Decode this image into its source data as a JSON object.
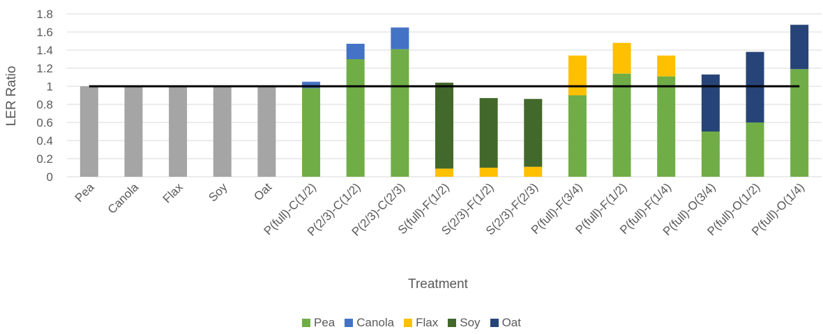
{
  "chart_data": {
    "type": "bar",
    "stacked": true,
    "title": "",
    "xlabel": "Treatment",
    "ylabel": "LER Ratio",
    "ylim": [
      0,
      1.8
    ],
    "yticks": [
      "0",
      "0.2",
      "0.4",
      "0.6",
      "0.8",
      "1",
      "1.2",
      "1.4",
      "1.6",
      "1.8"
    ],
    "grid": true,
    "legend_position": "bottom",
    "reference_line": 1.0,
    "categories": [
      "Pea",
      "Canola",
      "Flax",
      "Soy",
      "Oat",
      "P(full)-C(1/2)",
      "P(2/3)-C(1/2)",
      "P(2/3)-C(2/3)",
      "S(full)-F(1/2)",
      "S(2/3)-F(1/2)",
      "S(2/3)-F(2/3)",
      "P(full)-F(3/4)",
      "P(full)-F(1/2)",
      "P(full)-F(1/4)",
      "P(full)-O(3/4)",
      "P(full)-O(1/2)",
      "P(full)-O(1/4)"
    ],
    "monoculture": {
      "color": "#A5A5A5",
      "values": [
        1,
        1,
        1,
        1,
        1
      ]
    },
    "series": [
      {
        "name": "Pea",
        "color": "#70AD47",
        "values": [
          0,
          0,
          0,
          0,
          0,
          0.98,
          1.3,
          1.41,
          0,
          0,
          0,
          0.9,
          1.14,
          1.11,
          0.5,
          0.6,
          1.19
        ]
      },
      {
        "name": "Flax",
        "color": "#FFC000",
        "values": [
          0,
          0,
          0,
          0,
          0,
          0,
          0,
          0,
          0.09,
          0.1,
          0.11,
          0.44,
          0.34,
          0.23,
          0,
          0,
          0
        ]
      },
      {
        "name": "Soy",
        "color": "#43682B",
        "values": [
          0,
          0,
          0,
          0,
          0,
          0,
          0,
          0,
          0.95,
          0.77,
          0.75,
          0,
          0,
          0,
          0,
          0,
          0
        ]
      },
      {
        "name": "Canola",
        "color": "#4472C4",
        "values": [
          0,
          0,
          0,
          0,
          0,
          0.07,
          0.17,
          0.24,
          0,
          0,
          0,
          0,
          0,
          0,
          0,
          0,
          0
        ]
      },
      {
        "name": "Oat",
        "color": "#264478",
        "values": [
          0,
          0,
          0,
          0,
          0,
          0,
          0,
          0,
          0,
          0,
          0,
          0,
          0,
          0,
          0.63,
          0.78,
          0.49
        ]
      }
    ],
    "legend": [
      {
        "name": "Pea",
        "color": "#70AD47"
      },
      {
        "name": "Canola",
        "color": "#4472C4"
      },
      {
        "name": "Flax",
        "color": "#FFC000"
      },
      {
        "name": "Soy",
        "color": "#43682B"
      },
      {
        "name": "Oat",
        "color": "#264478"
      }
    ]
  }
}
